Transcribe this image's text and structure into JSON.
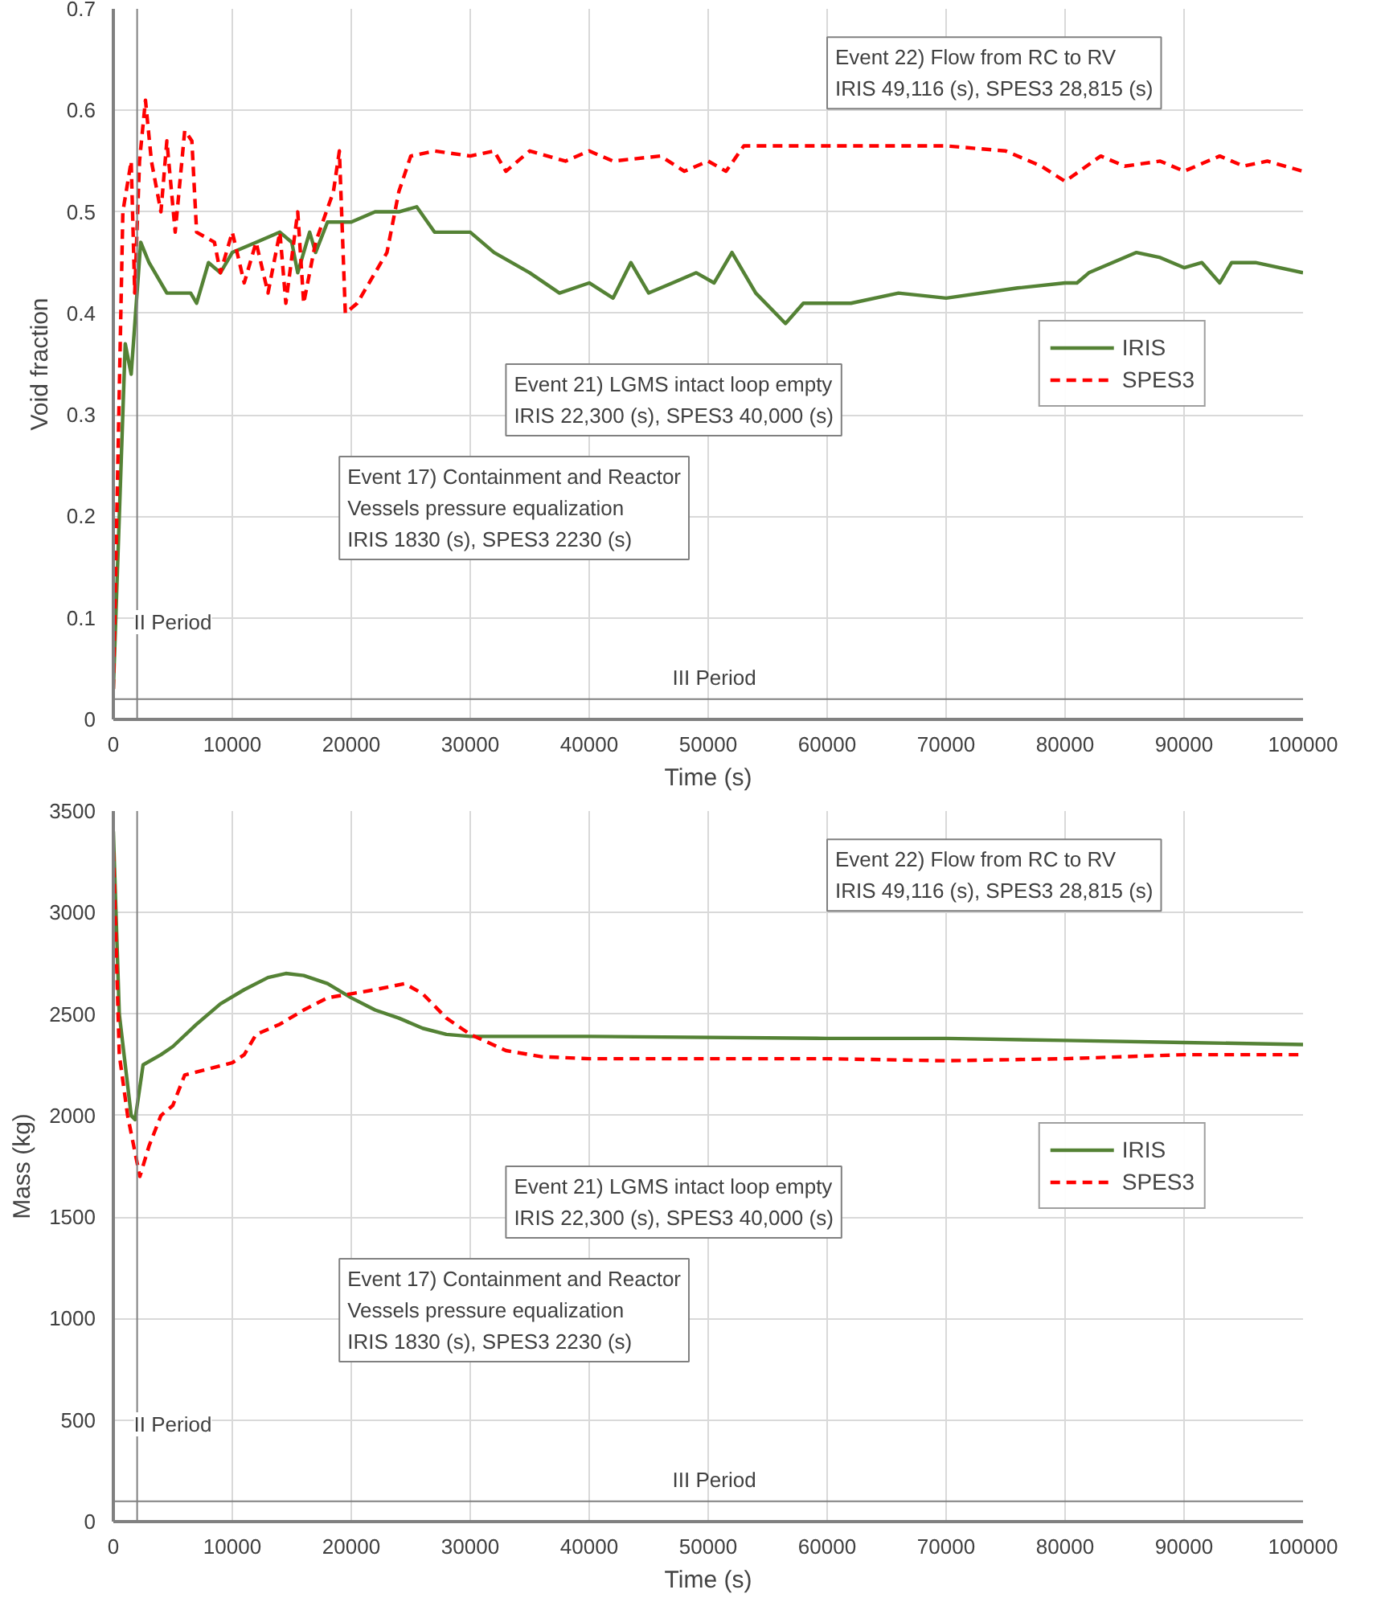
{
  "chart_data": [
    {
      "type": "line",
      "xlabel": "Time (s)",
      "ylabel": "Void fraction",
      "xlim": [
        0,
        100000
      ],
      "ylim": [
        0,
        0.7
      ],
      "xticks": [
        0,
        10000,
        20000,
        30000,
        40000,
        50000,
        60000,
        70000,
        80000,
        90000,
        100000
      ],
      "yticks": [
        0,
        0.1,
        0.2,
        0.3,
        0.4,
        0.5,
        0.6,
        0.7
      ],
      "grid": true,
      "legend": "right",
      "series": [
        {
          "name": "IRIS",
          "color": "#548235",
          "line_style": "solid",
          "x": [
            0,
            1000,
            1500,
            2300,
            3000,
            4500,
            6500,
            7000,
            8000,
            9000,
            10000,
            12000,
            14000,
            15000,
            15500,
            16500,
            17000,
            18000,
            20000,
            22000,
            24000,
            25500,
            27000,
            30000,
            32000,
            35000,
            37500,
            40000,
            42000,
            43500,
            45000,
            47000,
            49000,
            50500,
            52000,
            54000,
            56500,
            58000,
            62000,
            66000,
            70000,
            76000,
            80000,
            81000,
            82000,
            86000,
            88000,
            90000,
            91500,
            93000,
            94000,
            96000,
            100000
          ],
          "values": [
            0.03,
            0.37,
            0.34,
            0.47,
            0.45,
            0.42,
            0.42,
            0.41,
            0.45,
            0.44,
            0.46,
            0.47,
            0.48,
            0.47,
            0.44,
            0.48,
            0.46,
            0.49,
            0.49,
            0.5,
            0.5,
            0.505,
            0.48,
            0.48,
            0.46,
            0.44,
            0.42,
            0.43,
            0.415,
            0.45,
            0.42,
            0.43,
            0.44,
            0.43,
            0.46,
            0.42,
            0.39,
            0.41,
            0.41,
            0.42,
            0.415,
            0.425,
            0.43,
            0.43,
            0.44,
            0.46,
            0.455,
            0.445,
            0.45,
            0.43,
            0.45,
            0.45,
            0.44
          ]
        },
        {
          "name": "SPES3",
          "color": "#ff0000",
          "line_style": "dashed",
          "x": [
            0,
            800,
            1500,
            1800,
            2200,
            2700,
            3200,
            4000,
            4500,
            5200,
            6000,
            6600,
            7000,
            8500,
            9000,
            10000,
            11000,
            12000,
            13000,
            14000,
            14500,
            15500,
            16000,
            17000,
            18500,
            19000,
            19500,
            20500,
            22000,
            23000,
            24000,
            25000,
            27000,
            30000,
            32000,
            33000,
            35000,
            38000,
            40000,
            42000,
            46000,
            48000,
            50000,
            51500,
            53000,
            60000,
            70000,
            75000,
            78000,
            80000,
            83000,
            85000,
            88000,
            90000,
            93000,
            95000,
            97000,
            100000
          ],
          "values": [
            0.03,
            0.5,
            0.55,
            0.42,
            0.55,
            0.61,
            0.55,
            0.5,
            0.57,
            0.48,
            0.58,
            0.57,
            0.48,
            0.47,
            0.44,
            0.48,
            0.43,
            0.47,
            0.42,
            0.48,
            0.41,
            0.5,
            0.41,
            0.47,
            0.52,
            0.56,
            0.4,
            0.41,
            0.44,
            0.46,
            0.52,
            0.555,
            0.56,
            0.555,
            0.56,
            0.54,
            0.56,
            0.55,
            0.56,
            0.55,
            0.555,
            0.54,
            0.55,
            0.54,
            0.565,
            0.565,
            0.565,
            0.56,
            0.545,
            0.53,
            0.555,
            0.545,
            0.55,
            0.54,
            0.555,
            0.545,
            0.55,
            0.54
          ]
        }
      ],
      "ref_lines": [
        {
          "axis": "x",
          "value": 2000,
          "label": "II Period"
        },
        {
          "axis": "y",
          "value": 0.02,
          "label": "III Period"
        }
      ],
      "annotations": [
        "Event 22) Flow from RC to RV\nIRIS 49,116 (s), SPES3 28,815 (s)",
        "Event 21) LGMS intact loop empty\nIRIS 22,300 (s), SPES3 40,000 (s)",
        "Event 17) Containment and Reactor\nVessels pressure equalization\nIRIS 1830 (s), SPES3 2230 (s)"
      ]
    },
    {
      "type": "line",
      "xlabel": "Time (s)",
      "ylabel": "Mass (kg)",
      "xlim": [
        0,
        100000
      ],
      "ylim": [
        0,
        3500
      ],
      "xticks": [
        0,
        10000,
        20000,
        30000,
        40000,
        50000,
        60000,
        70000,
        80000,
        90000,
        100000
      ],
      "yticks": [
        0,
        500,
        1000,
        1500,
        2000,
        2500,
        3000,
        3500
      ],
      "grid": true,
      "legend": "right",
      "series": [
        {
          "name": "IRIS",
          "color": "#548235",
          "line_style": "solid",
          "x": [
            0,
            500,
            1500,
            1830,
            2500,
            4000,
            5000,
            7000,
            9000,
            11000,
            13000,
            14500,
            16000,
            18000,
            20000,
            22000,
            24000,
            26000,
            28000,
            30000,
            40000,
            60000,
            70000,
            80000,
            90000,
            100000
          ],
          "values": [
            3400,
            2500,
            2000,
            1980,
            2250,
            2300,
            2340,
            2450,
            2550,
            2620,
            2680,
            2700,
            2690,
            2650,
            2580,
            2520,
            2480,
            2430,
            2400,
            2390,
            2390,
            2380,
            2380,
            2370,
            2360,
            2350
          ]
        },
        {
          "name": "SPES3",
          "color": "#ff0000",
          "line_style": "dashed",
          "x": [
            0,
            500,
            1200,
            2230,
            3000,
            4000,
            5000,
            6000,
            8000,
            10000,
            11000,
            12000,
            14000,
            16000,
            18000,
            20000,
            22000,
            24500,
            26000,
            28000,
            30000,
            33000,
            36000,
            40000,
            60000,
            70000,
            80000,
            90000,
            100000
          ],
          "values": [
            3300,
            2300,
            2000,
            1700,
            1850,
            2000,
            2050,
            2200,
            2230,
            2260,
            2300,
            2400,
            2450,
            2520,
            2580,
            2600,
            2620,
            2650,
            2600,
            2480,
            2400,
            2320,
            2290,
            2280,
            2280,
            2270,
            2280,
            2300,
            2300
          ]
        }
      ],
      "ref_lines": [
        {
          "axis": "x",
          "value": 2000,
          "label": "II Period"
        },
        {
          "axis": "y",
          "value": 100,
          "label": "III Period"
        }
      ],
      "annotations": [
        "Event 22) Flow from RC to RV\nIRIS 49,116 (s), SPES3 28,815 (s)",
        "Event 21) LGMS intact loop empty\nIRIS 22,300 (s), SPES3 40,000 (s)",
        "Event 17) Containment and Reactor\nVessels pressure equalization\nIRIS 1830 (s), SPES3 2230 (s)"
      ]
    }
  ]
}
